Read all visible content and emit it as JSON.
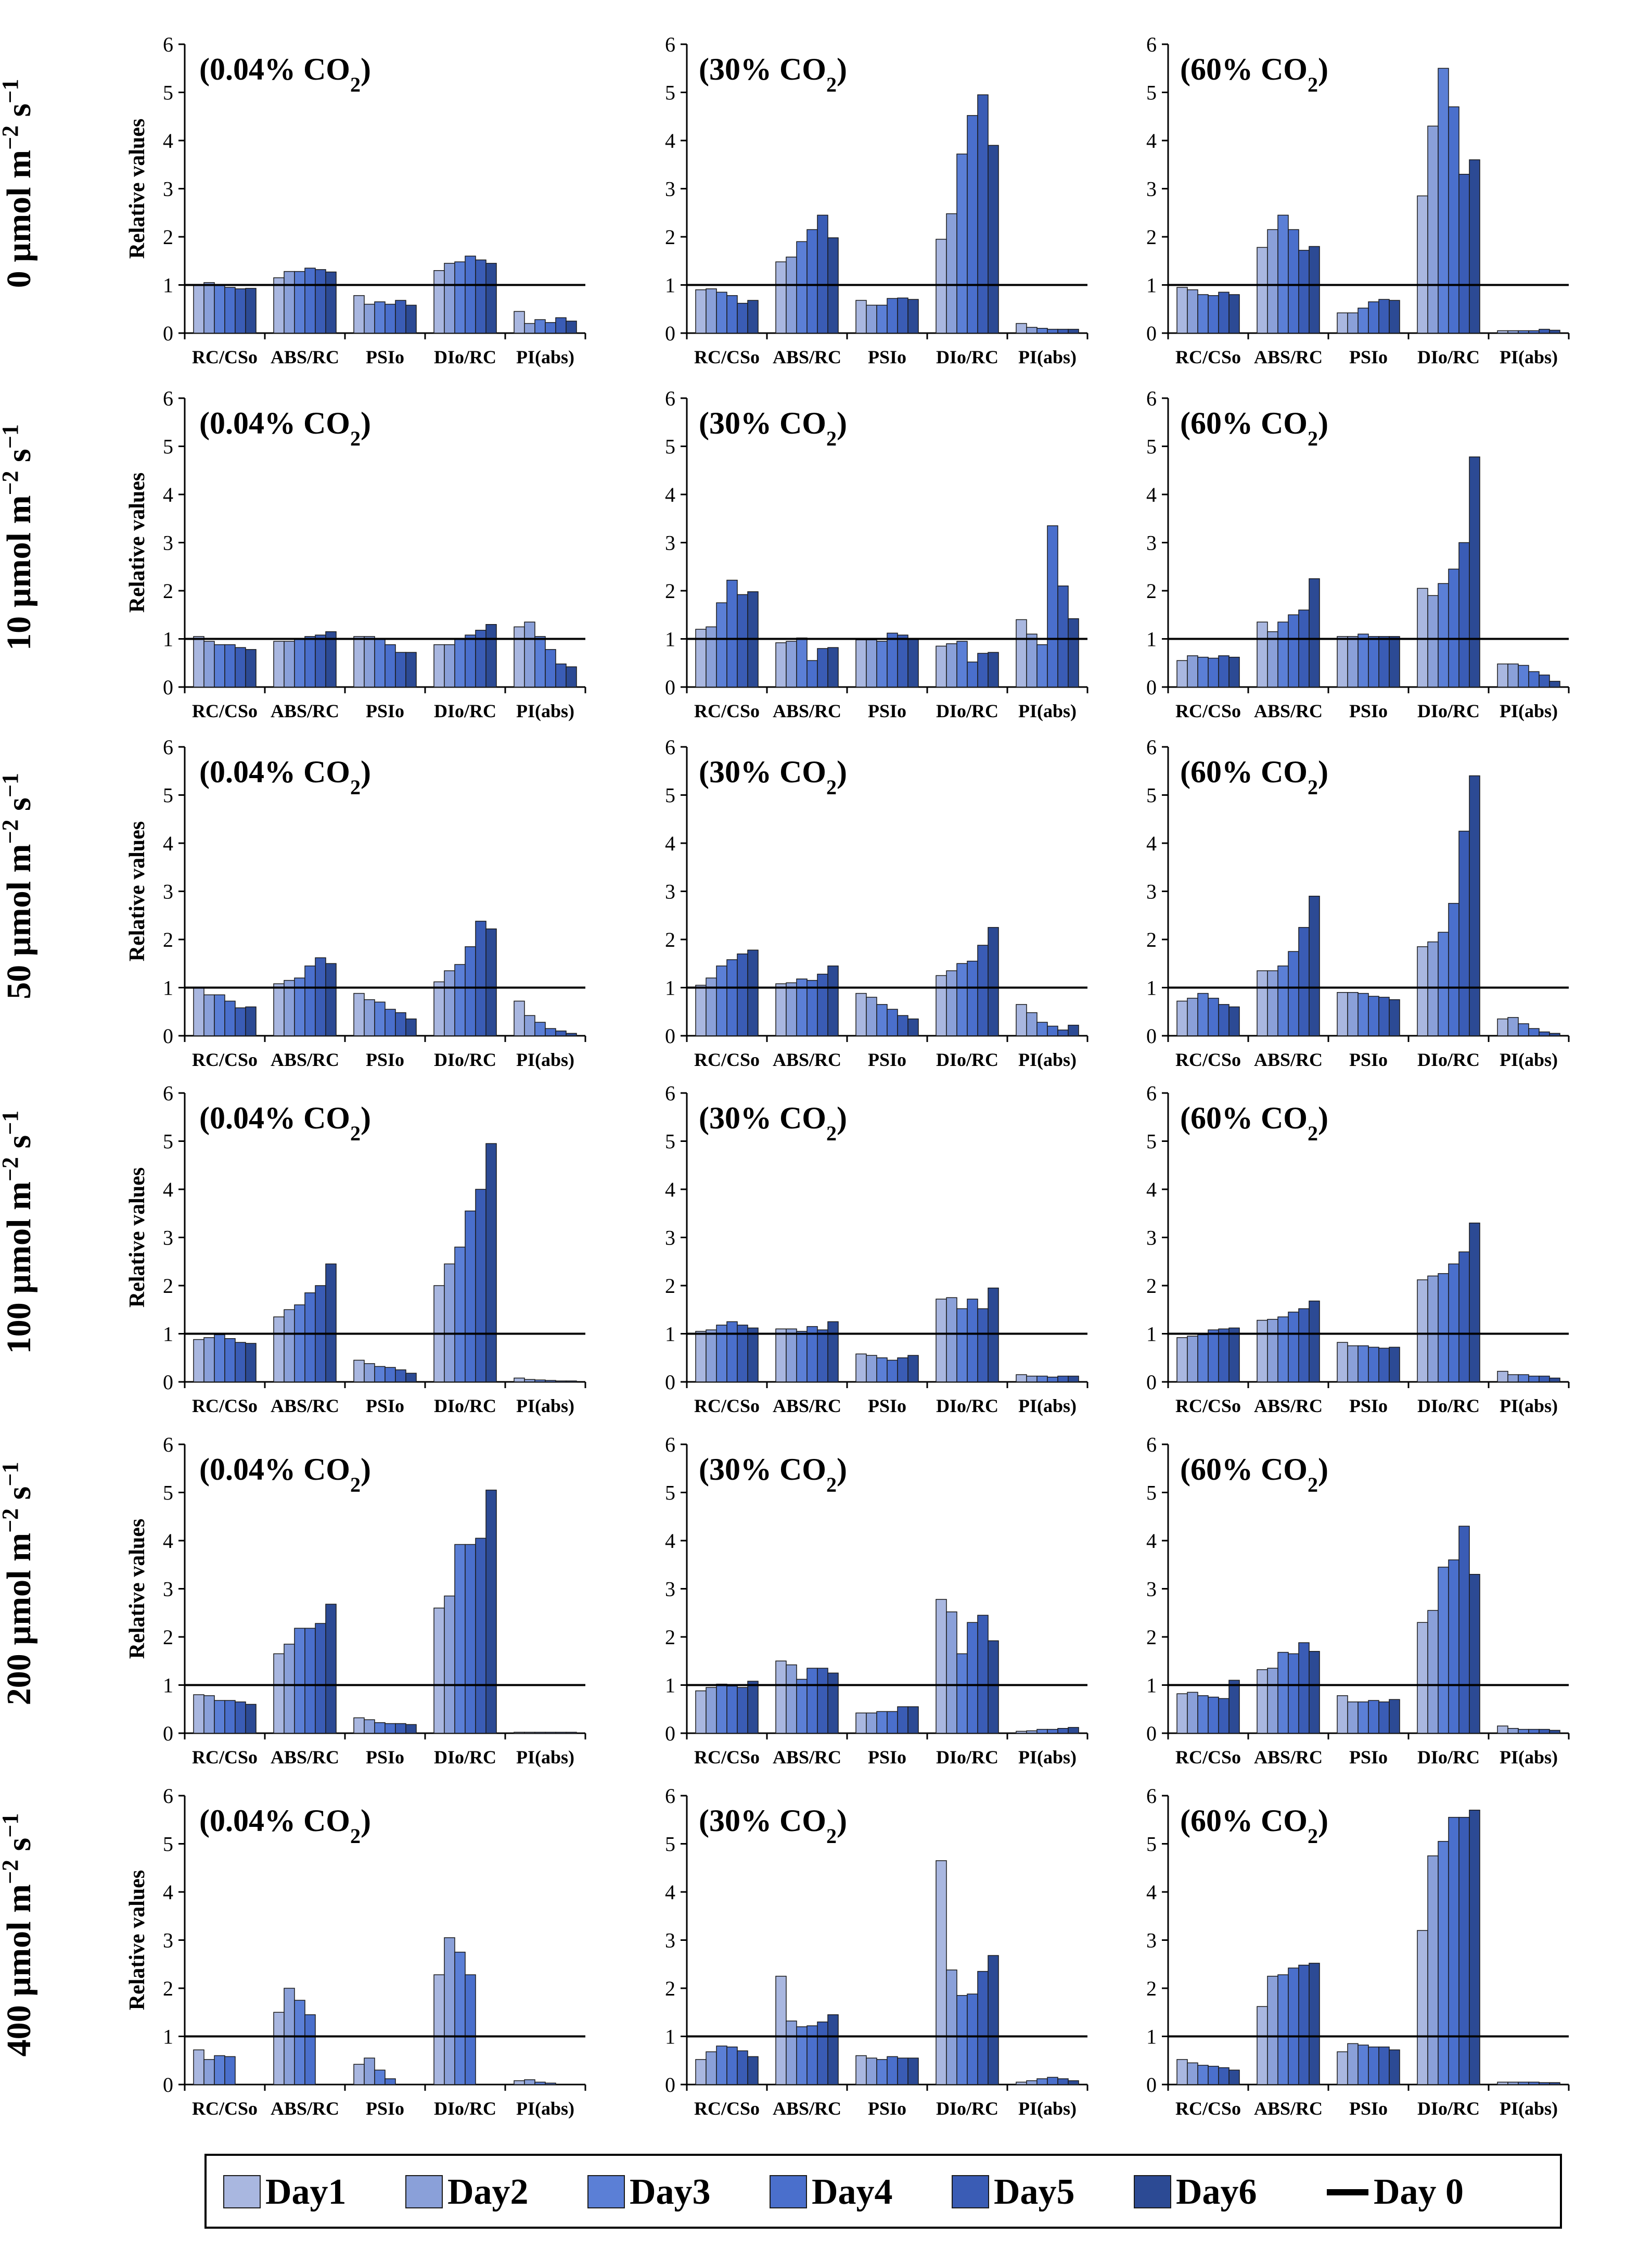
{
  "figure": {
    "y_axis_label": "Relative values",
    "reference_line_value": 1,
    "series_colors": [
      "#a9b7e0",
      "#8aa0d9",
      "#5b7fd6",
      "#4a6fcc",
      "#3a5cb5",
      "#2c4a94"
    ],
    "series_names": [
      "Day1",
      "Day2",
      "Day3",
      "Day4",
      "Day5",
      "Day6"
    ],
    "legend": {
      "entries": [
        "Day1",
        "Day2",
        "Day3",
        "Day4",
        "Day5",
        "Day6",
        "Day 0"
      ],
      "day0_color": "#000000"
    }
  },
  "rows": [
    {
      "label": "0 µmol m",
      "sup1": "−2",
      "mid": " s",
      "sup2": "−1"
    },
    {
      "label": "10 µmol m",
      "sup1": "−2",
      "mid": " s",
      "sup2": "−1"
    },
    {
      "label": "50 µmol m",
      "sup1": "−2",
      "mid": " s",
      "sup2": "−1"
    },
    {
      "label": "100 µmol m",
      "sup1": "−2",
      "mid": " s",
      "sup2": "−1"
    },
    {
      "label": "200 µmol m",
      "sup1": "−2",
      "mid": " s",
      "sup2": "−1"
    },
    {
      "label": "400 µmol m",
      "sup1": "−2",
      "mid": " s",
      "sup2": "−1"
    }
  ],
  "columns": [
    {
      "title": "(0.04% CO",
      "sub": "2",
      "close": ")"
    },
    {
      "title": "(30% CO",
      "sub": "2",
      "close": ")"
    },
    {
      "title": "(60% CO",
      "sub": "2",
      "close": ")"
    }
  ],
  "chart_data": {
    "type": "bar",
    "categories": [
      "RC/CSo",
      "ABS/RC",
      "PSIo",
      "DIo/RC",
      "PI(abs)"
    ],
    "series_names": [
      "Day1",
      "Day2",
      "Day3",
      "Day4",
      "Day5",
      "Day6"
    ],
    "ylim": [
      0,
      6
    ],
    "yticks": [
      0,
      1,
      2,
      3,
      4,
      5,
      6
    ],
    "ylabel": "Relative values",
    "reference_line": 1,
    "panels": [
      {
        "row": 0,
        "col": 0,
        "values": [
          [
            1.0,
            1.05,
            1.0,
            0.95,
            0.92,
            0.93
          ],
          [
            1.15,
            1.28,
            1.28,
            1.35,
            1.32,
            1.27
          ],
          [
            0.78,
            0.6,
            0.65,
            0.6,
            0.68,
            0.58
          ],
          [
            1.3,
            1.45,
            1.48,
            1.6,
            1.52,
            1.45
          ],
          [
            0.45,
            0.2,
            0.28,
            0.22,
            0.32,
            0.25
          ]
        ]
      },
      {
        "row": 0,
        "col": 1,
        "values": [
          [
            0.9,
            0.92,
            0.85,
            0.78,
            0.62,
            0.68
          ],
          [
            1.48,
            1.58,
            1.9,
            2.15,
            2.45,
            1.98
          ],
          [
            0.68,
            0.58,
            0.58,
            0.72,
            0.73,
            0.7
          ],
          [
            1.95,
            2.48,
            3.72,
            4.52,
            4.95,
            3.9
          ],
          [
            0.2,
            0.12,
            0.1,
            0.08,
            0.08,
            0.08
          ]
        ]
      },
      {
        "row": 0,
        "col": 2,
        "values": [
          [
            0.95,
            0.9,
            0.8,
            0.78,
            0.85,
            0.8
          ],
          [
            1.78,
            2.15,
            2.45,
            2.15,
            1.72,
            1.8
          ],
          [
            0.42,
            0.42,
            0.52,
            0.65,
            0.7,
            0.68
          ],
          [
            2.85,
            4.3,
            5.5,
            4.7,
            3.3,
            3.6
          ],
          [
            0.05,
            0.05,
            0.05,
            0.05,
            0.08,
            0.06
          ]
        ]
      },
      {
        "row": 1,
        "col": 0,
        "values": [
          [
            1.05,
            0.95,
            0.88,
            0.88,
            0.82,
            0.78
          ],
          [
            0.95,
            0.95,
            1.0,
            1.05,
            1.08,
            1.15
          ],
          [
            1.05,
            1.05,
            1.0,
            0.88,
            0.72,
            0.72
          ],
          [
            0.88,
            0.88,
            1.0,
            1.08,
            1.18,
            1.3
          ],
          [
            1.25,
            1.35,
            1.05,
            0.78,
            0.48,
            0.42
          ]
        ]
      },
      {
        "row": 1,
        "col": 1,
        "values": [
          [
            1.2,
            1.25,
            1.75,
            2.22,
            1.92,
            1.98
          ],
          [
            0.92,
            0.95,
            1.02,
            0.55,
            0.8,
            0.82
          ],
          [
            0.98,
            0.98,
            0.95,
            1.12,
            1.08,
            1.0
          ],
          [
            0.85,
            0.9,
            0.95,
            0.52,
            0.7,
            0.72
          ],
          [
            1.4,
            1.1,
            0.88,
            3.35,
            2.1,
            1.42
          ]
        ]
      },
      {
        "row": 1,
        "col": 2,
        "values": [
          [
            0.55,
            0.65,
            0.62,
            0.6,
            0.65,
            0.62
          ],
          [
            1.35,
            1.15,
            1.35,
            1.5,
            1.6,
            2.25
          ],
          [
            1.05,
            1.05,
            1.1,
            1.05,
            1.05,
            1.05
          ],
          [
            2.05,
            1.9,
            2.15,
            2.45,
            3.0,
            4.78
          ],
          [
            0.48,
            0.48,
            0.45,
            0.32,
            0.25,
            0.12
          ]
        ]
      },
      {
        "row": 2,
        "col": 0,
        "values": [
          [
            1.0,
            0.85,
            0.85,
            0.72,
            0.58,
            0.6
          ],
          [
            1.08,
            1.15,
            1.2,
            1.45,
            1.62,
            1.5
          ],
          [
            0.88,
            0.75,
            0.7,
            0.55,
            0.48,
            0.35
          ],
          [
            1.12,
            1.35,
            1.48,
            1.85,
            2.38,
            2.22
          ],
          [
            0.72,
            0.42,
            0.28,
            0.15,
            0.1,
            0.05
          ]
        ]
      },
      {
        "row": 2,
        "col": 1,
        "values": [
          [
            1.05,
            1.2,
            1.45,
            1.58,
            1.7,
            1.78
          ],
          [
            1.08,
            1.1,
            1.18,
            1.15,
            1.28,
            1.45
          ],
          [
            0.88,
            0.8,
            0.65,
            0.55,
            0.42,
            0.35
          ],
          [
            1.25,
            1.35,
            1.5,
            1.55,
            1.88,
            2.25
          ],
          [
            0.65,
            0.48,
            0.28,
            0.2,
            0.12,
            0.22
          ]
        ]
      },
      {
        "row": 2,
        "col": 2,
        "values": [
          [
            0.72,
            0.78,
            0.88,
            0.78,
            0.65,
            0.6
          ],
          [
            1.35,
            1.35,
            1.45,
            1.75,
            2.25,
            2.9
          ],
          [
            0.9,
            0.9,
            0.88,
            0.82,
            0.8,
            0.75
          ],
          [
            1.85,
            1.95,
            2.15,
            2.75,
            4.25,
            5.4
          ],
          [
            0.35,
            0.38,
            0.25,
            0.15,
            0.08,
            0.05
          ]
        ]
      },
      {
        "row": 3,
        "col": 0,
        "values": [
          [
            0.88,
            0.92,
            0.98,
            0.9,
            0.82,
            0.8
          ],
          [
            1.35,
            1.5,
            1.6,
            1.85,
            2.0,
            2.45
          ],
          [
            0.45,
            0.38,
            0.32,
            0.3,
            0.25,
            0.18
          ],
          [
            2.0,
            2.45,
            2.8,
            3.55,
            4.0,
            4.95
          ],
          [
            0.08,
            0.05,
            0.04,
            0.03,
            0.02,
            0.02
          ]
        ]
      },
      {
        "row": 3,
        "col": 1,
        "values": [
          [
            1.05,
            1.08,
            1.18,
            1.25,
            1.18,
            1.12
          ],
          [
            1.1,
            1.1,
            1.05,
            1.15,
            1.08,
            1.25
          ],
          [
            0.58,
            0.55,
            0.5,
            0.45,
            0.5,
            0.55
          ],
          [
            1.72,
            1.75,
            1.52,
            1.72,
            1.52,
            1.95
          ],
          [
            0.15,
            0.12,
            0.12,
            0.1,
            0.12,
            0.12
          ]
        ]
      },
      {
        "row": 3,
        "col": 2,
        "values": [
          [
            0.92,
            0.95,
            0.98,
            1.08,
            1.1,
            1.12
          ],
          [
            1.28,
            1.3,
            1.35,
            1.45,
            1.52,
            1.68
          ],
          [
            0.82,
            0.75,
            0.75,
            0.72,
            0.7,
            0.72
          ],
          [
            2.12,
            2.2,
            2.25,
            2.45,
            2.7,
            3.3
          ],
          [
            0.22,
            0.15,
            0.15,
            0.12,
            0.12,
            0.08
          ]
        ]
      },
      {
        "row": 4,
        "col": 0,
        "values": [
          [
            0.8,
            0.78,
            0.68,
            0.68,
            0.65,
            0.6
          ],
          [
            1.65,
            1.85,
            2.18,
            2.18,
            2.28,
            2.68
          ],
          [
            0.32,
            0.28,
            0.22,
            0.2,
            0.2,
            0.18
          ],
          [
            2.6,
            2.85,
            3.92,
            3.92,
            4.05,
            5.05
          ],
          [
            0.02,
            0.02,
            0.02,
            0.02,
            0.02,
            0.02
          ]
        ]
      },
      {
        "row": 4,
        "col": 1,
        "values": [
          [
            0.88,
            0.95,
            1.02,
            0.98,
            0.95,
            1.08
          ],
          [
            1.5,
            1.42,
            1.12,
            1.35,
            1.35,
            1.25
          ],
          [
            0.42,
            0.42,
            0.45,
            0.45,
            0.55,
            0.55
          ],
          [
            2.78,
            2.52,
            1.65,
            2.3,
            2.45,
            1.92
          ],
          [
            0.04,
            0.05,
            0.08,
            0.08,
            0.1,
            0.12
          ]
        ]
      },
      {
        "row": 4,
        "col": 2,
        "values": [
          [
            0.82,
            0.85,
            0.78,
            0.75,
            0.72,
            1.1
          ],
          [
            1.32,
            1.35,
            1.68,
            1.65,
            1.88,
            1.7
          ],
          [
            0.78,
            0.65,
            0.65,
            0.68,
            0.65,
            0.7
          ],
          [
            2.3,
            2.55,
            3.45,
            3.6,
            4.3,
            3.3
          ],
          [
            0.15,
            0.1,
            0.08,
            0.08,
            0.08,
            0.06
          ]
        ]
      },
      {
        "row": 5,
        "col": 0,
        "values": [
          [
            0.72,
            0.52,
            0.6,
            0.58,
            0,
            0
          ],
          [
            1.5,
            2.0,
            1.75,
            1.45,
            0,
            0
          ],
          [
            0.42,
            0.55,
            0.3,
            0.12,
            0,
            0
          ],
          [
            2.28,
            3.05,
            2.75,
            2.28,
            0,
            0
          ],
          [
            0.08,
            0.1,
            0.05,
            0.03,
            0,
            0
          ]
        ]
      },
      {
        "row": 5,
        "col": 1,
        "values": [
          [
            0.52,
            0.68,
            0.8,
            0.78,
            0.7,
            0.58
          ],
          [
            2.25,
            1.32,
            1.2,
            1.22,
            1.3,
            1.45
          ],
          [
            0.6,
            0.55,
            0.52,
            0.58,
            0.55,
            0.55
          ],
          [
            4.65,
            2.38,
            1.85,
            1.88,
            2.35,
            2.68
          ],
          [
            0.05,
            0.08,
            0.12,
            0.15,
            0.12,
            0.08
          ]
        ]
      },
      {
        "row": 5,
        "col": 2,
        "values": [
          [
            0.52,
            0.45,
            0.4,
            0.38,
            0.35,
            0.3
          ],
          [
            1.62,
            2.25,
            2.28,
            2.42,
            2.48,
            2.52
          ],
          [
            0.68,
            0.85,
            0.82,
            0.78,
            0.78,
            0.72
          ],
          [
            3.2,
            4.75,
            5.05,
            5.55,
            5.55,
            5.7
          ],
          [
            0.05,
            0.05,
            0.05,
            0.05,
            0.04,
            0.04
          ]
        ]
      }
    ]
  }
}
